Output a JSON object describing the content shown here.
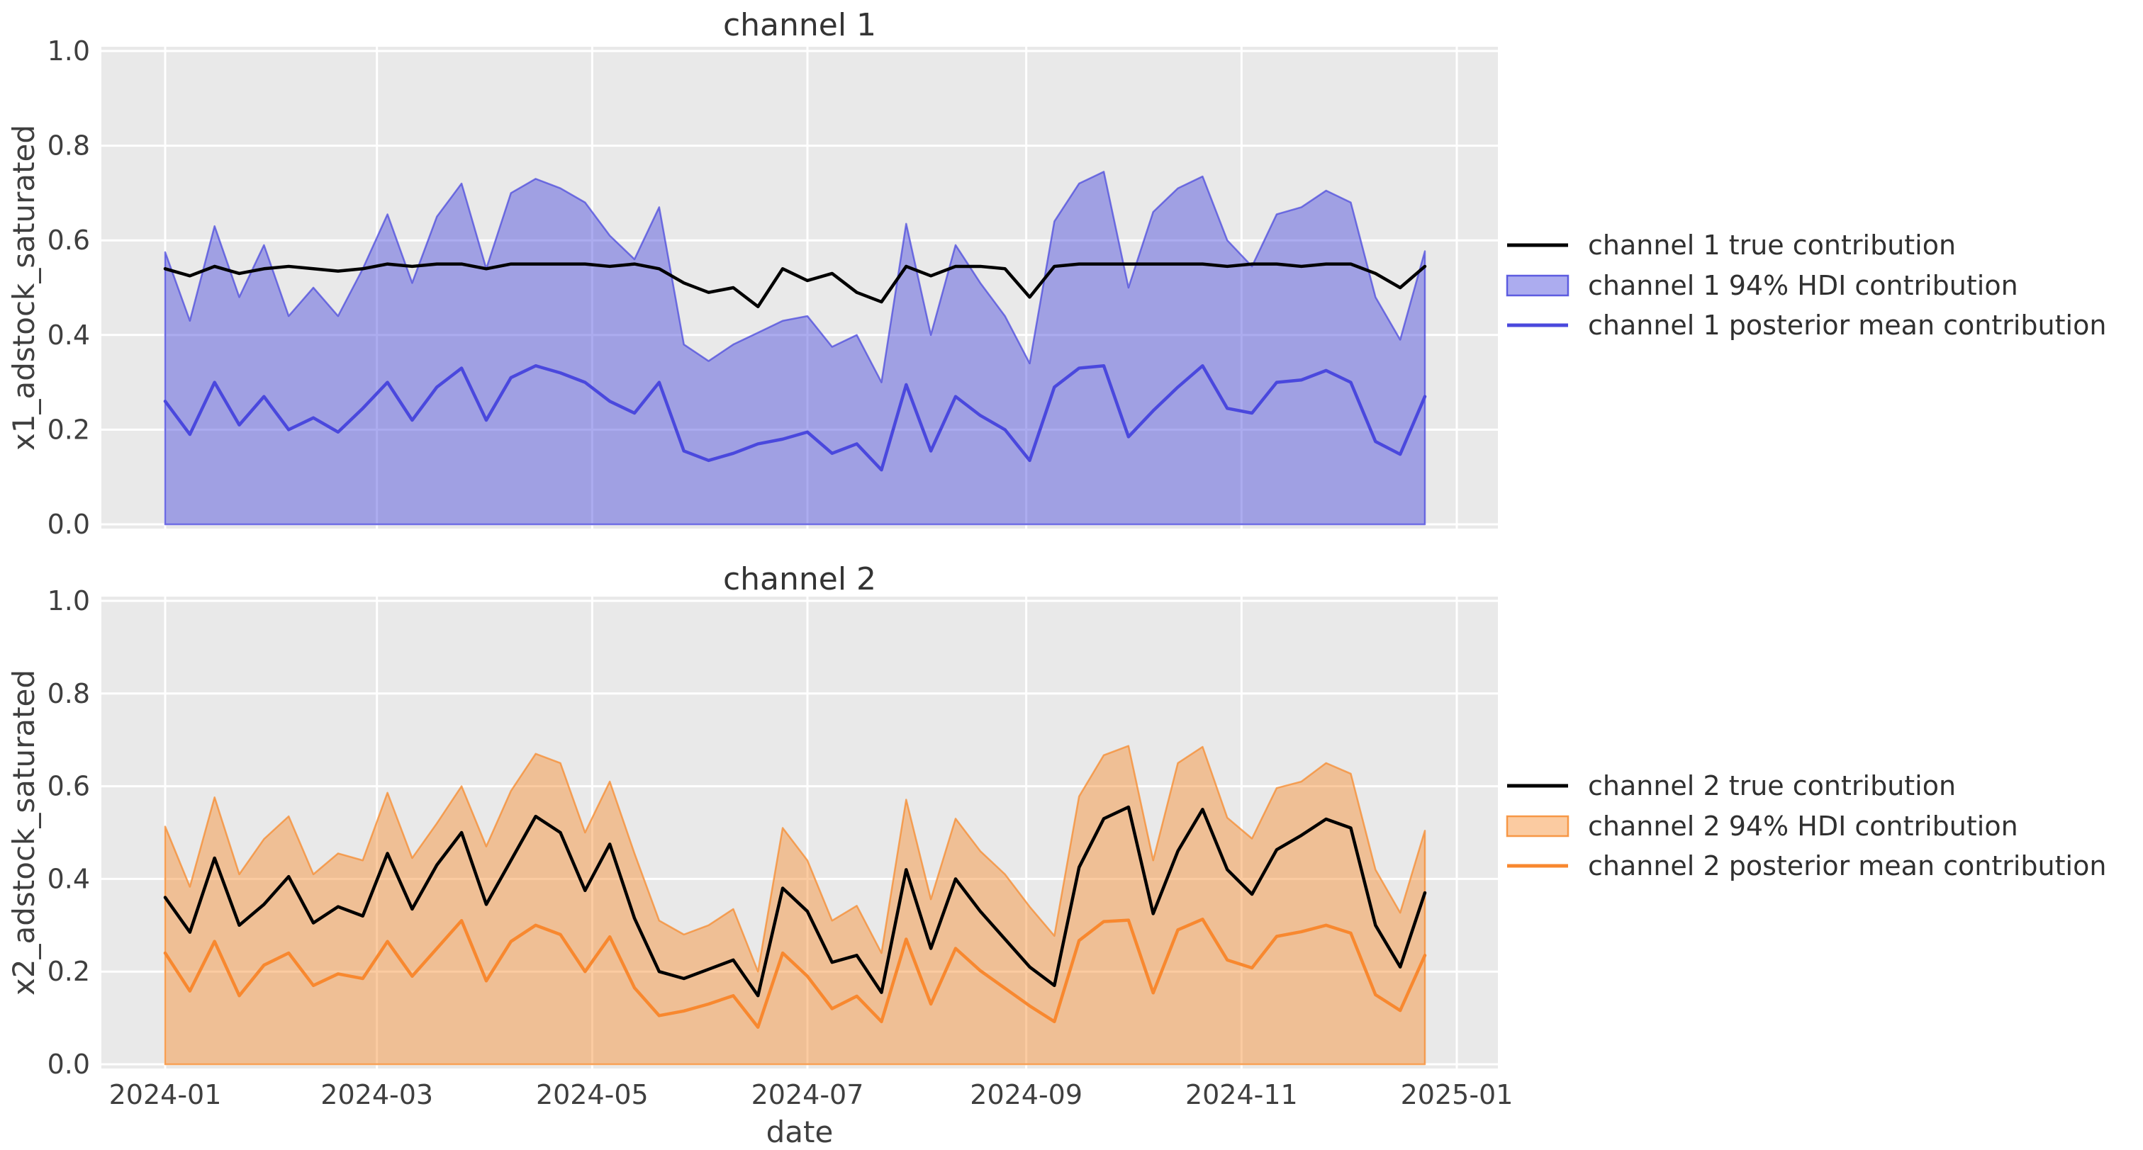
{
  "figure": {
    "plot_bg": "#e9e9e9",
    "grid_color": "#ffffff",
    "tick_color": "#3f3f3f",
    "accent_blue": "#4a48dd",
    "accent_orange": "#f8882f"
  },
  "chart_data": [
    {
      "type": "line",
      "title": "channel 1",
      "ylabel": "x1_adstock_saturated",
      "xlabel": "date",
      "ylim": [
        0.0,
        1.0
      ],
      "grid": true,
      "legend_position": "right of axes",
      "yticks": [
        "0.0",
        "0.2",
        "0.4",
        "0.6",
        "0.8",
        "1.0"
      ],
      "xticks": [
        {
          "label": "2024-01",
          "day": 0
        },
        {
          "label": "2024-03",
          "day": 60
        },
        {
          "label": "2024-05",
          "day": 121
        },
        {
          "label": "2024-07",
          "day": 182
        },
        {
          "label": "2024-09",
          "day": 244
        },
        {
          "label": "2024-11",
          "day": 305
        },
        {
          "label": "2025-01",
          "day": 366
        }
      ],
      "x_dates": [
        "2024-01-01",
        "2024-01-08",
        "2024-01-15",
        "2024-01-22",
        "2024-01-29",
        "2024-02-05",
        "2024-02-12",
        "2024-02-19",
        "2024-02-26",
        "2024-03-04",
        "2024-03-11",
        "2024-03-18",
        "2024-03-25",
        "2024-04-01",
        "2024-04-08",
        "2024-04-15",
        "2024-04-22",
        "2024-04-29",
        "2024-05-06",
        "2024-05-13",
        "2024-05-20",
        "2024-05-27",
        "2024-06-03",
        "2024-06-10",
        "2024-06-17",
        "2024-06-24",
        "2024-07-01",
        "2024-07-08",
        "2024-07-15",
        "2024-07-22",
        "2024-07-29",
        "2024-08-05",
        "2024-08-12",
        "2024-08-19",
        "2024-08-26",
        "2024-09-02",
        "2024-09-09",
        "2024-09-16",
        "2024-09-23",
        "2024-09-30",
        "2024-10-07",
        "2024-10-14",
        "2024-10-21",
        "2024-10-28",
        "2024-11-04",
        "2024-11-11",
        "2024-11-18",
        "2024-11-25",
        "2024-12-02",
        "2024-12-09",
        "2024-12-16",
        "2024-12-23"
      ],
      "series": [
        {
          "name": "channel 1 true contribution",
          "kind": "line",
          "color": "#000000",
          "values": [
            0.54,
            0.525,
            0.545,
            0.53,
            0.54,
            0.545,
            0.54,
            0.535,
            0.54,
            0.55,
            0.545,
            0.55,
            0.55,
            0.54,
            0.55,
            0.55,
            0.55,
            0.55,
            0.545,
            0.55,
            0.54,
            0.51,
            0.49,
            0.5,
            0.46,
            0.54,
            0.515,
            0.53,
            0.49,
            0.47,
            0.545,
            0.525,
            0.545,
            0.545,
            0.54,
            0.48,
            0.545,
            0.55,
            0.55,
            0.55,
            0.55,
            0.55,
            0.55,
            0.545,
            0.55,
            0.55,
            0.545,
            0.55,
            0.55,
            0.53,
            0.5,
            0.545
          ]
        },
        {
          "name": "channel 1 94% HDI contribution",
          "kind": "band",
          "fill": "rgba(72,70,220,0.45)",
          "edge": "rgba(72,70,220,0.72)",
          "lower": 0.0,
          "upper": [
            0.575,
            0.43,
            0.63,
            0.48,
            0.59,
            0.44,
            0.5,
            0.44,
            0.54,
            0.655,
            0.51,
            0.65,
            0.72,
            0.54,
            0.7,
            0.73,
            0.71,
            0.68,
            0.61,
            0.56,
            0.67,
            0.38,
            0.345,
            0.38,
            0.405,
            0.43,
            0.44,
            0.375,
            0.4,
            0.3,
            0.635,
            0.4,
            0.59,
            0.51,
            0.44,
            0.34,
            0.64,
            0.72,
            0.745,
            0.5,
            0.66,
            0.71,
            0.735,
            0.6,
            0.545,
            0.655,
            0.67,
            0.705,
            0.68,
            0.48,
            0.39,
            0.577
          ]
        },
        {
          "name": "channel 1 posterior mean contribution",
          "kind": "line",
          "color": "#4a48dd",
          "values": [
            0.26,
            0.19,
            0.3,
            0.21,
            0.27,
            0.2,
            0.225,
            0.195,
            0.245,
            0.3,
            0.22,
            0.29,
            0.33,
            0.22,
            0.31,
            0.335,
            0.32,
            0.3,
            0.26,
            0.235,
            0.3,
            0.155,
            0.135,
            0.15,
            0.17,
            0.18,
            0.195,
            0.15,
            0.17,
            0.115,
            0.295,
            0.155,
            0.27,
            0.23,
            0.2,
            0.135,
            0.29,
            0.33,
            0.335,
            0.185,
            0.24,
            0.29,
            0.335,
            0.245,
            0.235,
            0.3,
            0.305,
            0.325,
            0.3,
            0.175,
            0.148,
            0.27
          ]
        }
      ]
    },
    {
      "type": "line",
      "title": "channel 2",
      "ylabel": "x2_adstock_saturated",
      "xlabel": "date",
      "ylim": [
        0.0,
        1.0
      ],
      "grid": true,
      "legend_position": "right of axes",
      "yticks": [
        "0.0",
        "0.2",
        "0.4",
        "0.6",
        "0.8",
        "1.0"
      ],
      "xticks": [
        {
          "label": "2024-01",
          "day": 0
        },
        {
          "label": "2024-03",
          "day": 60
        },
        {
          "label": "2024-05",
          "day": 121
        },
        {
          "label": "2024-07",
          "day": 182
        },
        {
          "label": "2024-09",
          "day": 244
        },
        {
          "label": "2024-11",
          "day": 305
        },
        {
          "label": "2025-01",
          "day": 366
        }
      ],
      "x_dates": [
        "2024-01-01",
        "2024-01-08",
        "2024-01-15",
        "2024-01-22",
        "2024-01-29",
        "2024-02-05",
        "2024-02-12",
        "2024-02-19",
        "2024-02-26",
        "2024-03-04",
        "2024-03-11",
        "2024-03-18",
        "2024-03-25",
        "2024-04-01",
        "2024-04-08",
        "2024-04-15",
        "2024-04-22",
        "2024-04-29",
        "2024-05-06",
        "2024-05-13",
        "2024-05-20",
        "2024-05-27",
        "2024-06-03",
        "2024-06-10",
        "2024-06-17",
        "2024-06-24",
        "2024-07-01",
        "2024-07-08",
        "2024-07-15",
        "2024-07-22",
        "2024-07-29",
        "2024-08-05",
        "2024-08-12",
        "2024-08-19",
        "2024-08-26",
        "2024-09-02",
        "2024-09-09",
        "2024-09-16",
        "2024-09-23",
        "2024-09-30",
        "2024-10-07",
        "2024-10-14",
        "2024-10-21",
        "2024-10-28",
        "2024-11-04",
        "2024-11-11",
        "2024-11-18",
        "2024-11-25",
        "2024-12-02",
        "2024-12-09",
        "2024-12-16",
        "2024-12-23"
      ],
      "series": [
        {
          "name": "channel 2 true contribution",
          "kind": "line",
          "color": "#000000",
          "values": [
            0.36,
            0.285,
            0.445,
            0.3,
            0.345,
            0.405,
            0.305,
            0.34,
            0.32,
            0.455,
            0.335,
            0.43,
            0.5,
            0.345,
            0.44,
            0.535,
            0.5,
            0.375,
            0.475,
            0.315,
            0.2,
            0.185,
            0.205,
            0.225,
            0.148,
            0.38,
            0.33,
            0.22,
            0.235,
            0.155,
            0.42,
            0.25,
            0.4,
            0.33,
            0.27,
            0.21,
            0.17,
            0.425,
            0.53,
            0.555,
            0.325,
            0.46,
            0.55,
            0.42,
            0.367,
            0.463,
            0.494,
            0.529,
            0.51,
            0.3,
            0.21,
            0.37
          ]
        },
        {
          "name": "channel 2 94% HDI contribution",
          "kind": "band",
          "fill": "rgba(246,139,47,0.45)",
          "edge": "rgba(246,139,47,0.75)",
          "lower": 0.0,
          "upper": [
            0.513,
            0.383,
            0.576,
            0.41,
            0.486,
            0.535,
            0.41,
            0.455,
            0.44,
            0.586,
            0.445,
            0.52,
            0.6,
            0.47,
            0.59,
            0.67,
            0.65,
            0.5,
            0.61,
            0.455,
            0.31,
            0.28,
            0.3,
            0.335,
            0.2,
            0.51,
            0.44,
            0.31,
            0.342,
            0.24,
            0.571,
            0.356,
            0.53,
            0.46,
            0.41,
            0.34,
            0.277,
            0.578,
            0.667,
            0.687,
            0.44,
            0.65,
            0.685,
            0.532,
            0.487,
            0.596,
            0.61,
            0.65,
            0.627,
            0.42,
            0.327,
            0.504
          ]
        },
        {
          "name": "channel 2 posterior mean contribution",
          "kind": "line",
          "color": "#f8882f",
          "values": [
            0.24,
            0.158,
            0.265,
            0.148,
            0.214,
            0.24,
            0.17,
            0.195,
            0.185,
            0.265,
            0.19,
            0.25,
            0.31,
            0.18,
            0.265,
            0.3,
            0.28,
            0.2,
            0.275,
            0.165,
            0.105,
            0.115,
            0.13,
            0.148,
            0.08,
            0.24,
            0.19,
            0.12,
            0.147,
            0.092,
            0.27,
            0.13,
            0.25,
            0.202,
            0.164,
            0.126,
            0.092,
            0.267,
            0.308,
            0.311,
            0.154,
            0.29,
            0.313,
            0.225,
            0.208,
            0.276,
            0.286,
            0.3,
            0.283,
            0.15,
            0.116,
            0.235
          ]
        }
      ]
    }
  ]
}
